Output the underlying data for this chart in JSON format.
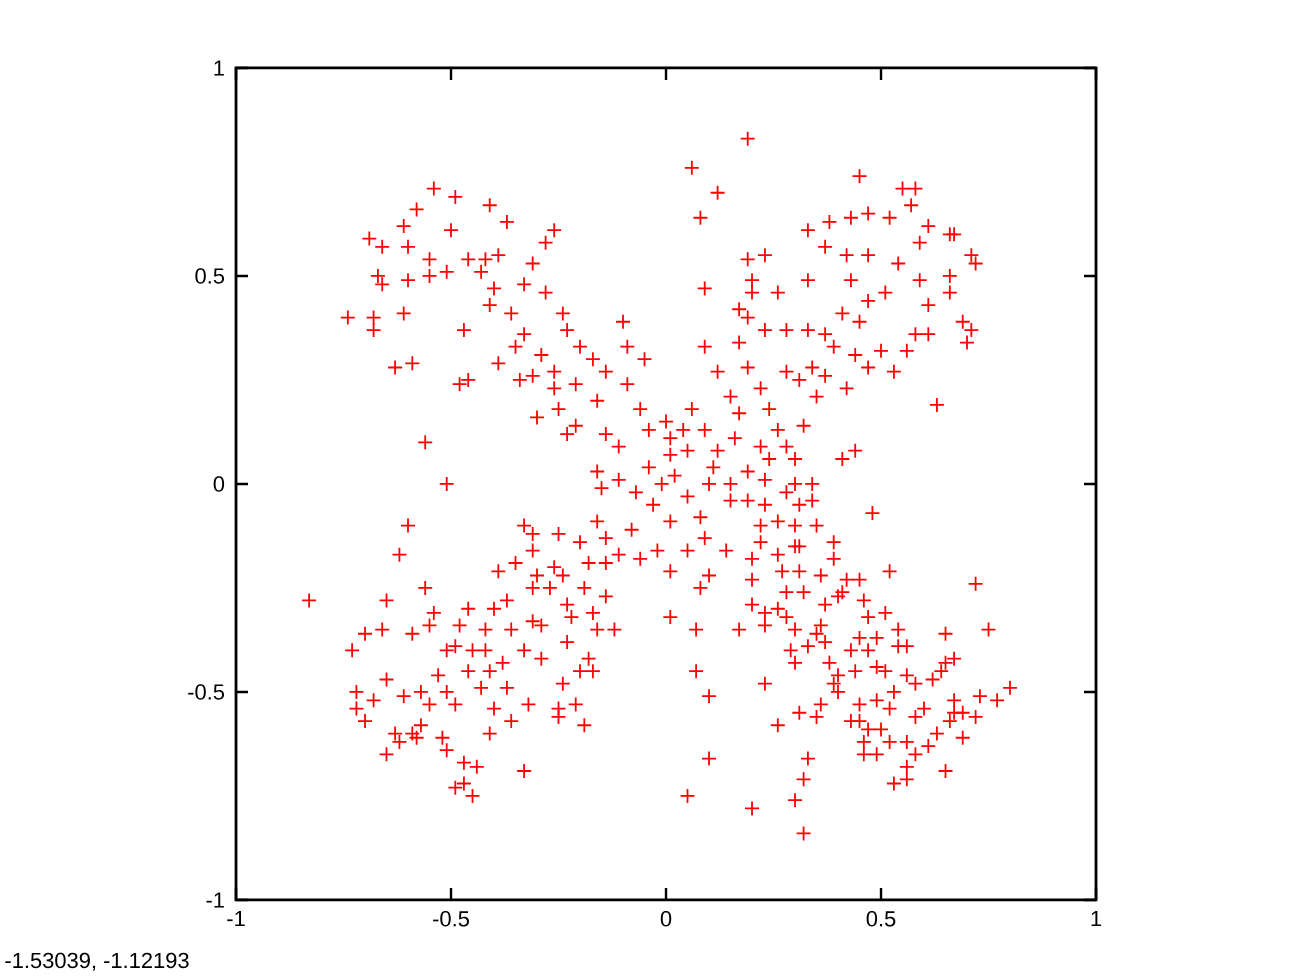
{
  "chart_data": {
    "type": "scatter",
    "marker": "cross",
    "color": "#ff0000",
    "xlim": [
      -1,
      1
    ],
    "ylim": [
      -1,
      1
    ],
    "xticks": [
      -1,
      -0.5,
      0,
      0.5,
      1
    ],
    "yticks": [
      -1,
      -0.5,
      0,
      0.5,
      1
    ],
    "annotations": [
      "-1.53039, -1.12193"
    ],
    "x": [
      -0.54,
      -0.49,
      -0.41,
      -0.37,
      -0.58,
      -0.69,
      -0.61,
      -0.5,
      -0.66,
      -0.67,
      -0.66,
      -0.6,
      -0.55,
      -0.51,
      -0.46,
      -0.42,
      -0.39,
      -0.31,
      -0.26,
      -0.28,
      -0.74,
      -0.68,
      -0.68,
      -0.61,
      -0.63,
      -0.59,
      -0.56,
      -0.51,
      -0.48,
      -0.46,
      -0.47,
      -0.4,
      -0.33,
      -0.41,
      -0.36,
      -0.28,
      -0.24,
      -0.1,
      -0.33,
      -0.23,
      -0.35,
      -0.29,
      -0.26,
      -0.39,
      -0.34,
      -0.31,
      -0.26,
      -0.2,
      -0.17,
      -0.14,
      -0.09,
      -0.05,
      -0.21,
      -0.3,
      -0.25,
      -0.23,
      -0.21,
      -0.14,
      -0.09,
      -0.16,
      -0.06,
      -0.11,
      -0.04,
      0,
      -0.16,
      -0.15,
      -0.07,
      -0.04,
      -0.11,
      -0.6,
      -0.55,
      -0.43,
      0.01,
      -0.01,
      0.19,
      0.06,
      0.12,
      0.08,
      0.45,
      0.55,
      0.58,
      0.57,
      0.33,
      0.38,
      0.43,
      0.47,
      0.52,
      0.61,
      0.66,
      0.67,
      0.59,
      0.71,
      0.72,
      0.19,
      0.23,
      0.2,
      0.09,
      0.2,
      0.26,
      0.33,
      0.37,
      0.42,
      0.47,
      0.54,
      0.59,
      0.66,
      0.66,
      0.61,
      0.69,
      0.71,
      0.7,
      0.61,
      0.58,
      0.56,
      0.53,
      0.63,
      0.43,
      0.47,
      0.51,
      0.41,
      0.45,
      0.17,
      0.19,
      0.09,
      0.12,
      0.17,
      0.23,
      0.28,
      0.33,
      0.37,
      0.39,
      0.44,
      0.47,
      0.5,
      0.37,
      0.42,
      0.34,
      0.28,
      0.31,
      0.35,
      0.22,
      0.15,
      0.17,
      0.24,
      0.19,
      0.04,
      0.09,
      0.06,
      0.05,
      0.12,
      0.16,
      0.22,
      0.26,
      0.28,
      0.32,
      0.41,
      0.44,
      0.34,
      0.3,
      0.24,
      0.19,
      0.11,
      0.01,
      0.1,
      0.15,
      -0.6,
      -0.62,
      -0.83,
      -0.65,
      -0.56,
      -0.7,
      -0.66,
      -0.73,
      -0.59,
      -0.54,
      -0.55,
      -0.65,
      -0.72,
      -0.72,
      -0.68,
      -0.7,
      -0.63,
      -0.62,
      -0.65,
      -0.59,
      -0.57,
      -0.58,
      -0.61,
      -0.57,
      -0.55,
      -0.53,
      -0.51,
      -0.49,
      -0.52,
      -0.51,
      -0.49,
      -0.47,
      -0.45,
      -0.47,
      -0.44,
      -0.33,
      -0.41,
      -0.4,
      -0.36,
      -0.37,
      -0.32,
      -0.43,
      -0.46,
      -0.41,
      -0.38,
      -0.33,
      -0.29,
      -0.24,
      -0.25,
      -0.25,
      -0.21,
      -0.19,
      -0.2,
      -0.17,
      -0.18,
      -0.23,
      -0.51,
      -0.49,
      -0.45,
      -0.42,
      -0.48,
      -0.46,
      -0.4,
      -0.37,
      -0.42,
      -0.36,
      -0.31,
      -0.29,
      -0.39,
      -0.35,
      -0.3,
      -0.31,
      -0.27,
      -0.26,
      -0.24,
      -0.23,
      -0.22,
      -0.19,
      -0.17,
      -0.16,
      -0.12,
      -0.14,
      -0.33,
      -0.31,
      -0.25,
      -0.31,
      -0.2,
      -0.18,
      -0.14,
      -0.16,
      -0.14,
      -0.11,
      -0.08,
      -0.06,
      -0.02,
      0.01,
      0.01,
      -0.03,
      0.01,
      0.48,
      0.72,
      0.75,
      0.8,
      0.77,
      0.73,
      0.72,
      0.69,
      0.69,
      0.65,
      0.67,
      0.65,
      0.64,
      0.62,
      0.67,
      0.67,
      0.66,
      0.63,
      0.61,
      0.65,
      0.56,
      0.56,
      0.53,
      0.58,
      0.56,
      0.52,
      0.49,
      0.46,
      0.46,
      0.47,
      0.5,
      0.52,
      0.58,
      0.6,
      0.58,
      0.56,
      0.53,
      0.49,
      0.45,
      0.45,
      0.43,
      0.4,
      0.39,
      0.44,
      0.4,
      0.38,
      0.47,
      0.49,
      0.51,
      0.54,
      0.56,
      0.54,
      0.51,
      0.47,
      0.49,
      0.45,
      0.43,
      0.46,
      0.42,
      0.45,
      0.41,
      0.52,
      0.39,
      0.39,
      0.34,
      0.35,
      0.3,
      0.31,
      0.36,
      0.4,
      0.37,
      0.36,
      0.37,
      0.33,
      0.29,
      0.3,
      0.35,
      0.3,
      0.28,
      0.32,
      0.31,
      0.28,
      0.26,
      0.23,
      0.23,
      0.2,
      0.27,
      0.3,
      0.26,
      0.2,
      0.2,
      0.17,
      0.22,
      0.26,
      0.22,
      0.19,
      0.23,
      0.28,
      0.14,
      0.09,
      0.1,
      0.08,
      0.05,
      0.07,
      0.07,
      0.1,
      0.23,
      0.26,
      0.31,
      0.35,
      0.36,
      0.1,
      0.05,
      0.2,
      0.3,
      0.32,
      0.33,
      0.32,
      0.02,
      0.05,
      0.08,
      0.15,
      0.23,
      0.3,
      0.31
    ],
    "values": [
      0.71,
      0.69,
      0.67,
      0.63,
      0.66,
      0.59,
      0.62,
      0.61,
      0.57,
      0.5,
      0.48,
      0.49,
      0.54,
      0.51,
      0.54,
      0.54,
      0.55,
      0.53,
      0.61,
      0.58,
      0.4,
      0.4,
      0.37,
      0.41,
      0.28,
      0.29,
      0.1,
      0,
      0.24,
      0.25,
      0.37,
      0.47,
      0.48,
      0.43,
      0.41,
      0.46,
      0.41,
      0.39,
      0.36,
      0.37,
      0.33,
      0.31,
      0.27,
      0.29,
      0.25,
      0.26,
      0.23,
      0.33,
      0.3,
      0.27,
      0.33,
      0.3,
      0.24,
      0.16,
      0.18,
      0.12,
      0.14,
      0.12,
      0.24,
      0.2,
      0.18,
      0.09,
      0.13,
      0.15,
      0.03,
      -0.01,
      -0.02,
      0.04,
      0.01,
      0.57,
      0.5,
      0.51,
      0.11,
      0,
      0.83,
      0.76,
      0.7,
      0.64,
      0.74,
      0.71,
      0.71,
      0.67,
      0.61,
      0.63,
      0.64,
      0.65,
      0.64,
      0.62,
      0.6,
      0.6,
      0.58,
      0.55,
      0.53,
      0.54,
      0.55,
      0.49,
      0.47,
      0.46,
      0.46,
      0.49,
      0.57,
      0.55,
      0.55,
      0.53,
      0.49,
      0.5,
      0.46,
      0.43,
      0.39,
      0.37,
      0.34,
      0.36,
      0.36,
      0.32,
      0.27,
      0.19,
      0.49,
      0.44,
      0.46,
      0.41,
      0.39,
      0.42,
      0.4,
      0.33,
      0.27,
      0.34,
      0.37,
      0.37,
      0.37,
      0.36,
      0.33,
      0.31,
      0.28,
      0.32,
      0.26,
      0.23,
      0.28,
      0.27,
      0.25,
      0.21,
      0.23,
      0.21,
      0.17,
      0.18,
      0.28,
      0.13,
      0.13,
      0.18,
      0.08,
      0.08,
      0.11,
      0.09,
      0.13,
      0.09,
      0.14,
      0.06,
      0.08,
      0,
      0.06,
      0.06,
      0.03,
      0.04,
      0.07,
      0,
      0,
      -0.1,
      -0.17,
      -0.28,
      -0.28,
      -0.25,
      -0.36,
      -0.35,
      -0.4,
      -0.36,
      -0.31,
      -0.34,
      -0.47,
      -0.5,
      -0.54,
      -0.52,
      -0.57,
      -0.6,
      -0.62,
      -0.65,
      -0.6,
      -0.58,
      -0.61,
      -0.51,
      -0.5,
      -0.53,
      -0.46,
      -0.5,
      -0.53,
      -0.61,
      -0.64,
      -0.73,
      -0.72,
      -0.75,
      -0.67,
      -0.68,
      -0.69,
      -0.6,
      -0.54,
      -0.57,
      -0.49,
      -0.53,
      -0.49,
      -0.45,
      -0.45,
      -0.43,
      -0.4,
      -0.42,
      -0.48,
      -0.54,
      -0.56,
      -0.53,
      -0.58,
      -0.45,
      -0.45,
      -0.42,
      -0.38,
      -0.4,
      -0.39,
      -0.4,
      -0.4,
      -0.34,
      -0.3,
      -0.3,
      -0.28,
      -0.35,
      -0.35,
      -0.33,
      -0.34,
      -0.21,
      -0.19,
      -0.22,
      -0.25,
      -0.25,
      -0.2,
      -0.22,
      -0.29,
      -0.32,
      -0.25,
      -0.31,
      -0.35,
      -0.35,
      -0.27,
      -0.1,
      -0.12,
      -0.12,
      -0.16,
      -0.14,
      -0.19,
      -0.19,
      -0.09,
      -0.13,
      -0.17,
      -0.11,
      -0.18,
      -0.16,
      -0.21,
      -0.32,
      -0.05,
      -0.09,
      -0.07,
      -0.24,
      -0.35,
      -0.49,
      -0.52,
      -0.51,
      -0.56,
      -0.55,
      -0.61,
      -0.36,
      -0.42,
      -0.43,
      -0.45,
      -0.47,
      -0.52,
      -0.55,
      -0.57,
      -0.6,
      -0.63,
      -0.69,
      -0.68,
      -0.71,
      -0.72,
      -0.65,
      -0.62,
      -0.62,
      -0.65,
      -0.65,
      -0.62,
      -0.59,
      -0.59,
      -0.54,
      -0.56,
      -0.54,
      -0.48,
      -0.46,
      -0.5,
      -0.52,
      -0.53,
      -0.57,
      -0.57,
      -0.5,
      -0.48,
      -0.45,
      -0.46,
      -0.43,
      -0.4,
      -0.44,
      -0.45,
      -0.39,
      -0.39,
      -0.35,
      -0.31,
      -0.32,
      -0.37,
      -0.37,
      -0.4,
      -0.28,
      -0.23,
      -0.23,
      -0.26,
      -0.21,
      -0.14,
      -0.18,
      -0.04,
      -0.1,
      -0.1,
      -0.15,
      -0.22,
      -0.27,
      -0.29,
      -0.34,
      -0.38,
      -0.39,
      -0.4,
      -0.43,
      -0.36,
      -0.35,
      -0.32,
      -0.26,
      -0.21,
      -0.26,
      -0.3,
      -0.34,
      -0.31,
      -0.29,
      -0.21,
      -0.15,
      -0.17,
      -0.23,
      -0.18,
      -0.35,
      -0.14,
      -0.09,
      -0.1,
      -0.04,
      -0.05,
      -0.02,
      -0.16,
      -0.13,
      -0.22,
      -0.25,
      -0.16,
      -0.35,
      -0.45,
      -0.51,
      -0.48,
      -0.58,
      -0.55,
      -0.56,
      -0.53,
      -0.66,
      -0.75,
      -0.78,
      -0.76,
      -0.71,
      -0.66,
      -0.84,
      0.02,
      -0.03,
      -0.08,
      -0.04,
      0.01,
      0,
      -0.05
    ]
  }
}
